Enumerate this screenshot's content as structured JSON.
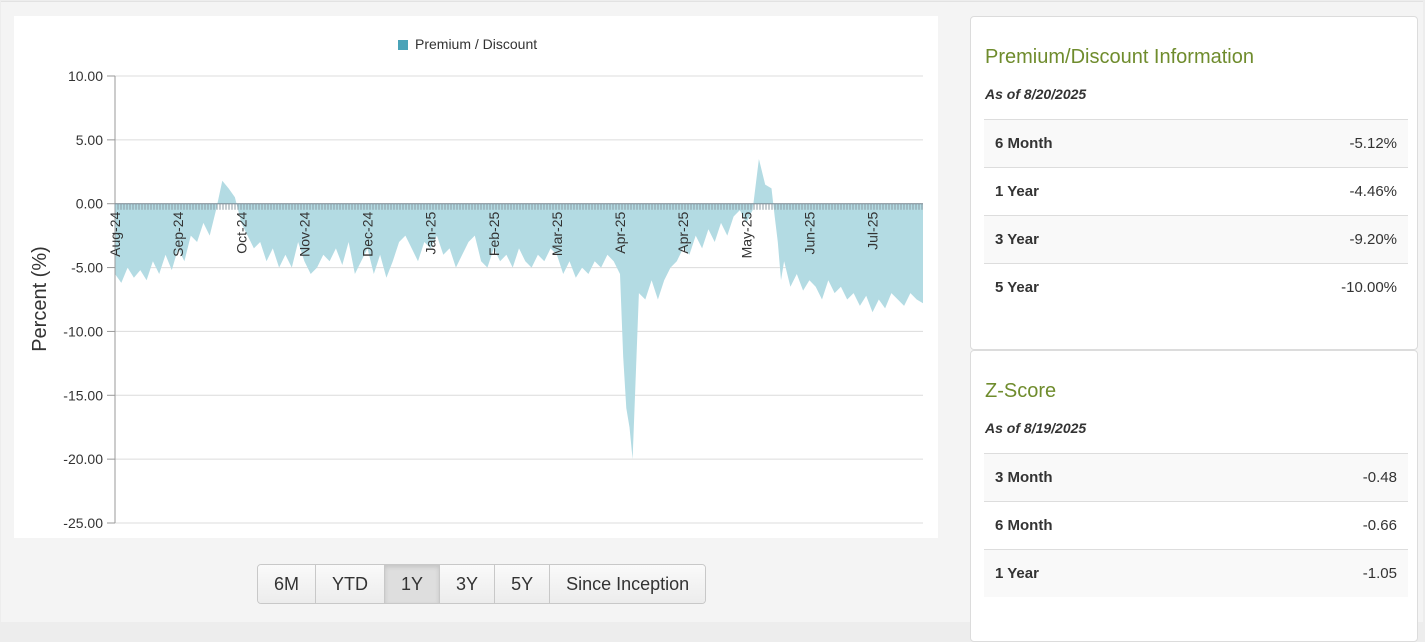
{
  "range_buttons": {
    "items": [
      "6M",
      "YTD",
      "1Y",
      "3Y",
      "5Y",
      "Since Inception"
    ],
    "active": "1Y"
  },
  "premium_discount_card": {
    "title": "Premium/Discount Information",
    "as_of": "As of 8/20/2025",
    "rows": [
      {
        "label": "6 Month",
        "value": "-5.12%"
      },
      {
        "label": "1 Year",
        "value": "-4.46%"
      },
      {
        "label": "3 Year",
        "value": "-9.20%"
      },
      {
        "label": "5 Year",
        "value": "-10.00%"
      }
    ]
  },
  "zscore_card": {
    "title": "Z-Score",
    "as_of": "As of 8/19/2025",
    "rows": [
      {
        "label": "3 Month",
        "value": "-0.48"
      },
      {
        "label": "6 Month",
        "value": "-0.66"
      },
      {
        "label": "1 Year",
        "value": "-1.05"
      }
    ]
  },
  "chart_data": {
    "type": "area",
    "ylabel": "Percent (%)",
    "ylim": [
      -25,
      10
    ],
    "yticks": [
      10,
      5,
      0,
      -5,
      -10,
      -15,
      -20,
      -25
    ],
    "ytick_labels": [
      "10.00",
      "5.00",
      "0.00",
      "-5.00",
      "-10.00",
      "-15.00",
      "-20.00",
      "-25.00"
    ],
    "xlim": [
      0,
      12.8
    ],
    "xtick_labels": [
      "Aug-24",
      "Sep-24",
      "Oct-24",
      "Nov-24",
      "Dec-24",
      "Jan-25",
      "Feb-25",
      "Mar-25",
      "Apr-25",
      "Apr-25",
      "May-25",
      "Jun-25",
      "Jul-25"
    ],
    "xtick_positions": [
      0,
      1,
      2,
      3,
      4,
      5,
      6,
      7,
      8,
      9,
      10,
      11,
      12
    ],
    "grid": true,
    "legend": "top-center",
    "fill_color": "#b3dbe3",
    "legend_color": "#4aa3b8",
    "series": [
      {
        "name": "Premium / Discount",
        "x": [
          0,
          0.1,
          0.2,
          0.3,
          0.4,
          0.5,
          0.6,
          0.7,
          0.8,
          0.9,
          1.0,
          1.1,
          1.2,
          1.3,
          1.4,
          1.5,
          1.6,
          1.7,
          1.8,
          1.9,
          2.0,
          2.1,
          2.2,
          2.3,
          2.4,
          2.5,
          2.6,
          2.7,
          2.8,
          2.9,
          3.0,
          3.1,
          3.2,
          3.3,
          3.4,
          3.5,
          3.6,
          3.7,
          3.8,
          3.9,
          4.0,
          4.1,
          4.2,
          4.3,
          4.4,
          4.5,
          4.6,
          4.7,
          4.8,
          4.9,
          5.0,
          5.1,
          5.2,
          5.3,
          5.4,
          5.5,
          5.6,
          5.7,
          5.8,
          5.9,
          6.0,
          6.1,
          6.2,
          6.3,
          6.4,
          6.5,
          6.6,
          6.7,
          6.8,
          6.9,
          7.0,
          7.1,
          7.2,
          7.3,
          7.4,
          7.5,
          7.6,
          7.7,
          7.8,
          7.9,
          8.0,
          8.05,
          8.1,
          8.15,
          8.2,
          8.3,
          8.4,
          8.5,
          8.6,
          8.7,
          8.8,
          8.9,
          9.0,
          9.1,
          9.2,
          9.3,
          9.4,
          9.5,
          9.6,
          9.7,
          9.8,
          9.9,
          10.0,
          10.1,
          10.2,
          10.3,
          10.4,
          10.45,
          10.5,
          10.55,
          10.6,
          10.7,
          10.8,
          10.9,
          11.0,
          11.1,
          11.2,
          11.3,
          11.4,
          11.5,
          11.6,
          11.7,
          11.8,
          11.9,
          12.0,
          12.1,
          12.2,
          12.3,
          12.4,
          12.5,
          12.6,
          12.7,
          12.8
        ],
        "y": [
          -5.5,
          -6.2,
          -5.0,
          -5.8,
          -5.2,
          -6.0,
          -4.5,
          -5.5,
          -4.0,
          -5.2,
          -3.5,
          -4.5,
          -2.5,
          -3.0,
          -1.5,
          -2.5,
          -0.5,
          1.8,
          1.2,
          0.5,
          -1.5,
          -2.5,
          -3.5,
          -3.0,
          -4.5,
          -3.5,
          -5.0,
          -4.0,
          -5.0,
          -3.0,
          -4.5,
          -5.5,
          -5.0,
          -4.0,
          -4.5,
          -3.5,
          -4.8,
          -3.0,
          -5.5,
          -4.5,
          -3.5,
          -5.5,
          -4.0,
          -5.8,
          -4.5,
          -3.0,
          -2.5,
          -3.5,
          -4.5,
          -3.0,
          -3.5,
          -2.5,
          -4.0,
          -3.5,
          -5.0,
          -4.0,
          -3.0,
          -2.5,
          -4.5,
          -5.0,
          -3.5,
          -4.5,
          -4.0,
          -5.0,
          -3.5,
          -4.5,
          -5.0,
          -4.0,
          -4.5,
          -3.5,
          -4.0,
          -5.5,
          -4.5,
          -5.8,
          -5.0,
          -5.5,
          -4.5,
          -5.0,
          -4.0,
          -4.5,
          -5.5,
          -12.0,
          -16.0,
          -17.5,
          -20.0,
          -7.0,
          -7.5,
          -6.0,
          -7.5,
          -6.0,
          -5.0,
          -4.5,
          -3.5,
          -4.0,
          -2.5,
          -3.5,
          -2.0,
          -3.0,
          -1.5,
          -2.5,
          -1.0,
          -0.5,
          -1.5,
          -0.5,
          3.5,
          1.5,
          1.2,
          -1.0,
          -3.0,
          -6.0,
          -4.5,
          -6.5,
          -5.5,
          -6.8,
          -6.0,
          -6.5,
          -7.5,
          -6.0,
          -7.0,
          -6.5,
          -7.5,
          -7.0,
          -8.0,
          -7.2,
          -8.5,
          -7.5,
          -8.2,
          -7.0,
          -7.5,
          -8.0,
          -7.0,
          -7.5,
          -7.8
        ]
      }
    ]
  }
}
